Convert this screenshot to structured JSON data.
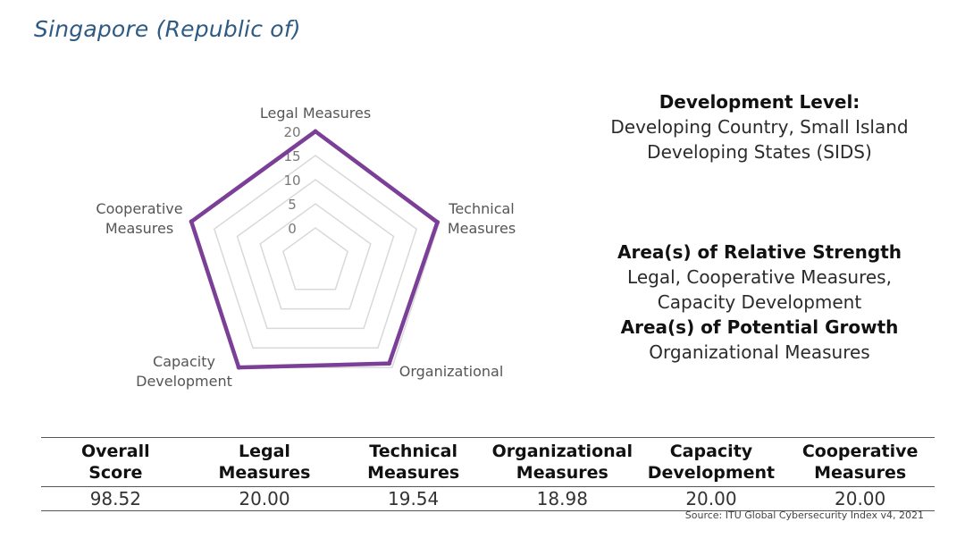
{
  "title": "Singapore (Republic of)",
  "chart_data": {
    "type": "radar",
    "axes": [
      "Legal Measures",
      "Technical Measures",
      "Organizational",
      "Capacity Development",
      "Cooperative Measures"
    ],
    "axis_label_lines": [
      [
        "Legal Measures"
      ],
      [
        "Technical",
        "Measures"
      ],
      [
        "Organizational"
      ],
      [
        "Capacity",
        "Development"
      ],
      [
        "Cooperative",
        "Measures"
      ]
    ],
    "values": [
      20.0,
      19.54,
      18.98,
      20.0,
      20.0
    ],
    "range": [
      0,
      20
    ],
    "ticks": [
      0,
      5,
      10,
      15,
      20
    ],
    "series_color": "#7b3f98",
    "grid_color": "#d9d9d9"
  },
  "info": {
    "development_heading": "Development Level:",
    "development_line1": "Developing Country, Small Island",
    "development_line2": "Developing States (SIDS)",
    "strength_heading": "Area(s) of Relative Strength",
    "strength_line1": "Legal, Cooperative Measures,",
    "strength_line2": "Capacity Development",
    "growth_heading": "Area(s) of Potential Growth",
    "growth_line1": "Organizational Measures"
  },
  "table": {
    "headers": [
      [
        "Overall",
        "Score"
      ],
      [
        "Legal",
        "Measures"
      ],
      [
        "Technical",
        "Measures"
      ],
      [
        "Organizational",
        "Measures"
      ],
      [
        "Capacity",
        "Development"
      ],
      [
        "Cooperative",
        "Measures"
      ]
    ],
    "values": [
      "98.52",
      "20.00",
      "19.54",
      "18.98",
      "20.00",
      "20.00"
    ]
  },
  "source": "Source: ITU Global Cybersecurity Index v4, 2021"
}
